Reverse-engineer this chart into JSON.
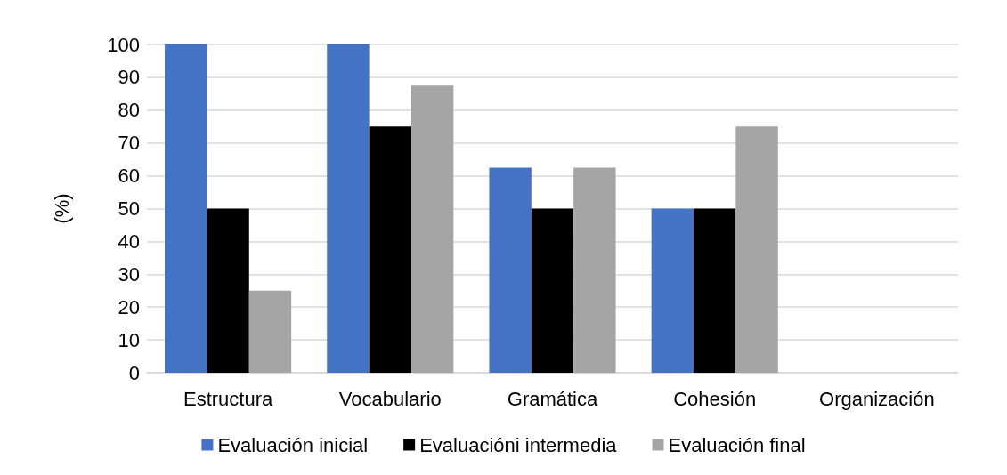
{
  "chart_data": {
    "type": "bar",
    "ylabel": "(%)",
    "categories": [
      "Estructura",
      "Vocabulario",
      "Gramática",
      "Cohesión",
      "Organización"
    ],
    "series": [
      {
        "name": "Evaluación inicial",
        "color": "#4472c4",
        "values": [
          100,
          100,
          62.5,
          50,
          0
        ]
      },
      {
        "name": "Evaluacióni intermedia",
        "color": "#000000",
        "values": [
          50,
          75,
          50,
          50,
          0
        ]
      },
      {
        "name": "Evaluación final",
        "color": "#a5a5a5",
        "values": [
          25,
          87.5,
          62.5,
          75,
          0
        ]
      }
    ],
    "ylim": [
      0,
      100
    ],
    "yticks": [
      0,
      10,
      20,
      30,
      40,
      50,
      60,
      70,
      80,
      90,
      100
    ],
    "grid": "y",
    "legend": "bottom"
  }
}
